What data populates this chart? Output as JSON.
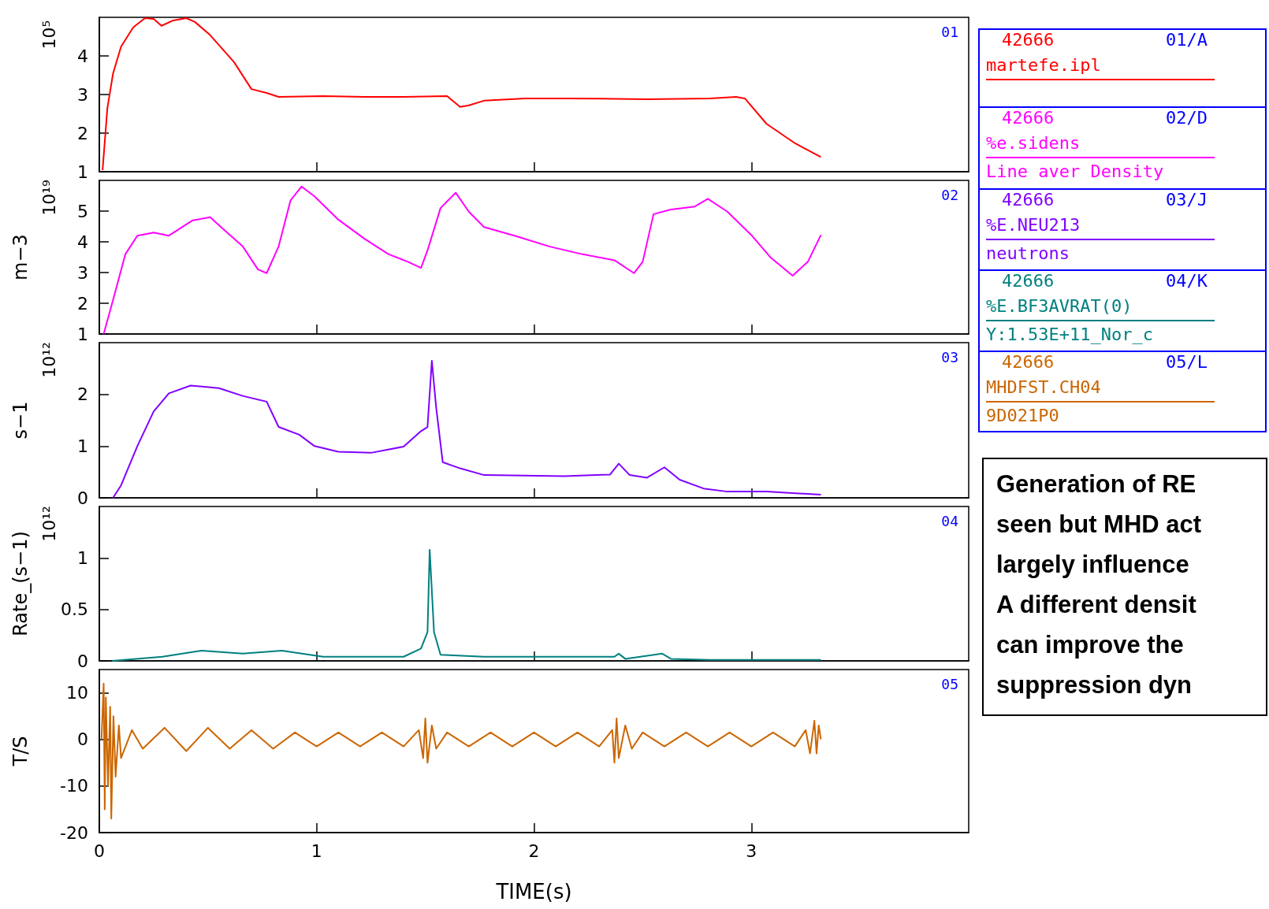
{
  "chart_data": [
    {
      "type": "line",
      "title": "01",
      "annotations": [
        "10⁵"
      ],
      "xlim": [
        0,
        4
      ],
      "xticks": [
        0,
        1,
        2,
        3
      ],
      "ylim": [
        1,
        5
      ],
      "yticks": [
        1,
        2,
        3,
        4
      ],
      "tick_labels": "y",
      "grid": false,
      "marker": "none",
      "line_style": "solid",
      "x": [
        0.015,
        0.037,
        0.063,
        0.1,
        0.156,
        0.21,
        0.25,
        0.286,
        0.34,
        0.4,
        0.44,
        0.51,
        0.62,
        0.7,
        0.77,
        0.825,
        1.03,
        1.22,
        1.4,
        1.6,
        1.66,
        1.7,
        1.77,
        1.96,
        2.15,
        2.52,
        2.81,
        2.93,
        2.97,
        3.07,
        3.2,
        3.32
      ],
      "series": [
        {
          "color": "#ff0000",
          "values": [
            1.04,
            2.64,
            3.54,
            4.24,
            4.74,
            4.98,
            4.96,
            4.78,
            4.92,
            4.98,
            4.88,
            4.54,
            3.84,
            3.14,
            3.04,
            2.94,
            2.96,
            2.94,
            2.94,
            2.96,
            2.68,
            2.72,
            2.84,
            2.9,
            2.9,
            2.88,
            2.9,
            2.94,
            2.9,
            2.24,
            1.74,
            1.38
          ]
        }
      ]
    },
    {
      "type": "line",
      "title": "02",
      "ylabel": "m−3",
      "annotations": [
        "10¹⁹"
      ],
      "xlim": [
        0,
        4
      ],
      "xticks": [
        0,
        1,
        2,
        3
      ],
      "ylim": [
        1,
        6
      ],
      "yticks": [
        1,
        2,
        3,
        4,
        5
      ],
      "tick_labels": "y",
      "grid": false,
      "marker": "none",
      "line_style": "solid",
      "x": [
        0.02,
        0.063,
        0.12,
        0.175,
        0.25,
        0.32,
        0.43,
        0.51,
        0.58,
        0.66,
        0.73,
        0.77,
        0.825,
        0.88,
        0.93,
        0.99,
        1.1,
        1.22,
        1.33,
        1.42,
        1.48,
        1.51,
        1.57,
        1.64,
        1.7,
        1.77,
        1.92,
        2.07,
        2.22,
        2.37,
        2.46,
        2.5,
        2.55,
        2.63,
        2.74,
        2.8,
        2.89,
        3.0,
        3.09,
        3.19,
        3.26,
        3.32
      ],
      "series": [
        {
          "color": "#ff00ff",
          "values": [
            1.0,
            2.1,
            3.6,
            4.2,
            4.3,
            4.2,
            4.7,
            4.8,
            4.35,
            3.85,
            3.1,
            2.98,
            3.85,
            5.35,
            5.8,
            5.48,
            4.72,
            4.1,
            3.6,
            3.35,
            3.15,
            3.72,
            5.1,
            5.6,
            4.98,
            4.48,
            4.18,
            3.85,
            3.6,
            3.4,
            2.98,
            3.35,
            4.9,
            5.05,
            5.15,
            5.4,
            4.98,
            4.22,
            3.48,
            2.9,
            3.35,
            4.22
          ]
        }
      ]
    },
    {
      "type": "line",
      "title": "03",
      "ylabel": "s−1",
      "annotations": [
        "10¹²"
      ],
      "xlim": [
        0,
        4
      ],
      "xticks": [
        0,
        1,
        2,
        3
      ],
      "ylim": [
        0,
        3
      ],
      "yticks": [
        0,
        1,
        2
      ],
      "tick_labels": "y",
      "grid": false,
      "marker": "none",
      "line_style": "solid",
      "x": [
        0.063,
        0.1,
        0.175,
        0.25,
        0.32,
        0.42,
        0.55,
        0.66,
        0.77,
        0.825,
        0.92,
        0.99,
        1.1,
        1.25,
        1.4,
        1.48,
        1.51,
        1.53,
        1.55,
        1.58,
        1.66,
        1.77,
        2.14,
        2.35,
        2.39,
        2.44,
        2.52,
        2.6,
        2.67,
        2.78,
        2.89,
        3.07,
        3.32
      ],
      "series": [
        {
          "color": "#8000ff",
          "values": [
            0,
            0.24,
            1.0,
            1.67,
            2.02,
            2.17,
            2.12,
            1.97,
            1.86,
            1.37,
            1.22,
            1.0,
            0.89,
            0.87,
            0.99,
            1.29,
            1.37,
            2.65,
            1.74,
            0.69,
            0.57,
            0.44,
            0.42,
            0.45,
            0.66,
            0.44,
            0.39,
            0.59,
            0.35,
            0.18,
            0.12,
            0.12,
            0.06
          ]
        }
      ]
    },
    {
      "type": "line",
      "title": "04",
      "ylabel": "Rate_(s−1)",
      "annotations": [
        "10¹²"
      ],
      "xlim": [
        0,
        4
      ],
      "xticks": [
        0,
        1,
        2,
        3
      ],
      "ylim": [
        0,
        1.5
      ],
      "yticks": [
        0,
        0.5,
        1
      ],
      "tick_labels": "y",
      "grid": false,
      "marker": "none",
      "line_style": "solid",
      "x": [
        0.06,
        0.29,
        0.47,
        0.66,
        0.84,
        1.03,
        1.4,
        1.48,
        1.51,
        1.52,
        1.54,
        1.57,
        1.77,
        2.37,
        2.39,
        2.42,
        2.59,
        2.63,
        2.81,
        3.32
      ],
      "series": [
        {
          "color": "#008080",
          "values": [
            0,
            0.04,
            0.1,
            0.07,
            0.1,
            0.04,
            0.04,
            0.12,
            0.28,
            1.08,
            0.28,
            0.06,
            0.04,
            0.04,
            0.07,
            0.02,
            0.07,
            0.02,
            0.01,
            0.01
          ]
        }
      ]
    },
    {
      "type": "line",
      "title": "05",
      "ylabel": "T/S",
      "xlabel": "TIME(s)",
      "xlim": [
        0,
        4
      ],
      "xticks": [
        0,
        1,
        2,
        3
      ],
      "ylim": [
        -20,
        15
      ],
      "yticks": [
        -20,
        -10,
        0,
        10
      ],
      "grid": false,
      "marker": "none",
      "line_style": "solid",
      "x": [
        0.01,
        0.02,
        0.025,
        0.03,
        0.04,
        0.05,
        0.055,
        0.065,
        0.075,
        0.09,
        0.1,
        0.15,
        0.2,
        0.3,
        0.4,
        0.5,
        0.6,
        0.7,
        0.8,
        0.9,
        1.0,
        1.1,
        1.2,
        1.3,
        1.4,
        1.47,
        1.49,
        1.5,
        1.51,
        1.53,
        1.55,
        1.6,
        1.7,
        1.8,
        1.9,
        2.0,
        2.1,
        2.2,
        2.3,
        2.36,
        2.37,
        2.38,
        2.39,
        2.42,
        2.45,
        2.5,
        2.6,
        2.7,
        2.8,
        2.9,
        3.0,
        3.1,
        3.2,
        3.25,
        3.27,
        3.29,
        3.3,
        3.31,
        3.32
      ],
      "series": [
        {
          "color": "#cc6600",
          "values": [
            0,
            12,
            -15,
            9,
            -10,
            7,
            -17,
            5,
            -8,
            3,
            -4,
            2,
            -2,
            2.5,
            -2.5,
            2.5,
            -2,
            2,
            -2,
            1.5,
            -1.5,
            1.5,
            -1.5,
            1.5,
            -1.5,
            2,
            -4,
            4.5,
            -5,
            3,
            -2,
            1.5,
            -1.5,
            1.5,
            -1.5,
            1.5,
            -1.5,
            1.5,
            -1.5,
            2,
            -5,
            4.5,
            -4,
            3,
            -2,
            1.5,
            -1.5,
            1.5,
            -1.5,
            1.5,
            -1.5,
            1.5,
            -1.5,
            2,
            -3,
            4,
            -3,
            3,
            0
          ]
        }
      ]
    },
    {
      "type": "other",
      "color": "#ff0000",
      "annotations": [
        "42666",
        "01/A",
        "martefe.ipl"
      ]
    },
    {
      "type": "other",
      "color": "#ff00ff",
      "annotations": [
        "42666",
        "02/D",
        "%e.sidens",
        "Line aver Density"
      ]
    },
    {
      "type": "other",
      "color": "#8000ff",
      "annotations": [
        "42666",
        "03/J",
        "%E.NEU213",
        "neutrons"
      ]
    },
    {
      "type": "other",
      "color": "#008080",
      "annotations": [
        "42666",
        "04/K",
        "%E.BF3AVRAT(0)",
        "Y:1.53E+11_Nor_c"
      ]
    },
    {
      "type": "other",
      "color": "#cc6600",
      "annotations": [
        "42666",
        "05/L",
        "MHDFST.CH04",
        "9D021P0"
      ]
    },
    {
      "type": "other",
      "annotations": [
        "Generation of RE",
        "seen but MHD act",
        "largely influence",
        "A different densit",
        "can improve the",
        "suppression dyn"
      ]
    }
  ]
}
